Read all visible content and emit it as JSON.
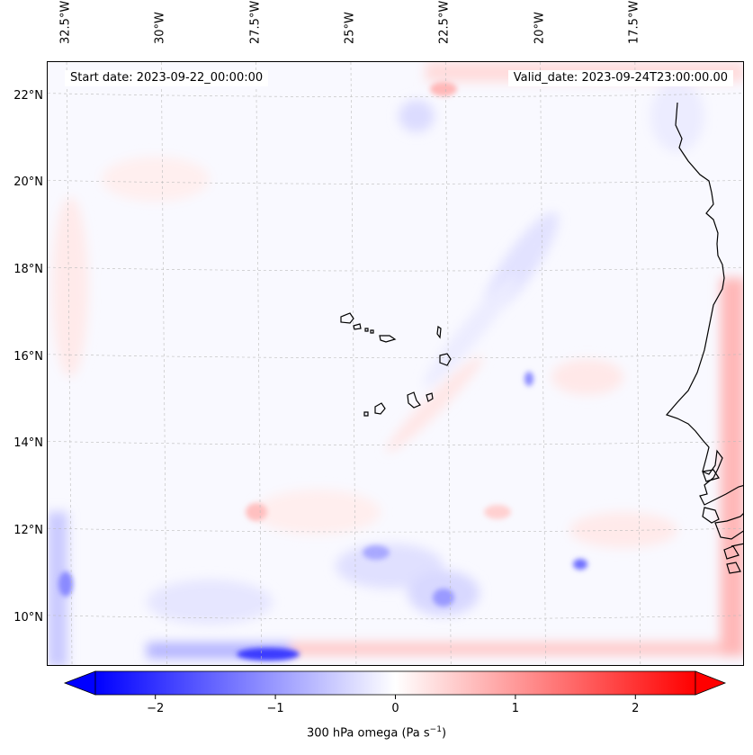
{
  "map": {
    "start_date_text": "Start date: 2023-09-22_00:00:00",
    "valid_date_text": "Valid_date: 2023-09-24T23:00:00.00",
    "extent": {
      "lon_min": -33.0,
      "lon_max": -14.6,
      "lat_min": 8.9,
      "lat_max": 22.8
    },
    "longitude_labels": [
      {
        "lon": -32.5,
        "text": "32.5°W"
      },
      {
        "lon": -30.0,
        "text": "30°W"
      },
      {
        "lon": -27.5,
        "text": "27.5°W"
      },
      {
        "lon": -25.0,
        "text": "25°W"
      },
      {
        "lon": -22.5,
        "text": "22.5°W"
      },
      {
        "lon": -20.0,
        "text": "20°W"
      },
      {
        "lon": -17.5,
        "text": "17.5°W"
      }
    ],
    "latitude_labels": [
      {
        "lat": 22,
        "text": "22°N"
      },
      {
        "lat": 20,
        "text": "20°N"
      },
      {
        "lat": 18,
        "text": "18°N"
      },
      {
        "lat": 16,
        "text": "16°N"
      },
      {
        "lat": 14,
        "text": "14°N"
      },
      {
        "lat": 12,
        "text": "12°N"
      },
      {
        "lat": 10,
        "text": "10°N"
      }
    ],
    "gridlines": true,
    "field": "300 hPa omega",
    "colormap": "bwr",
    "colors": {
      "negative": "#0000ff",
      "zero": "#ffffff",
      "positive": "#ff0000",
      "coastline": "#000000"
    }
  },
  "colorbar": {
    "label": "300 hPa omega (Pa s",
    "label_sup": "−1",
    "label_tail": ")",
    "vmin": -2.5,
    "vmax": 2.5,
    "extend": "both",
    "ticks": [
      {
        "value": -2,
        "text": "−2"
      },
      {
        "value": -1,
        "text": "−1"
      },
      {
        "value": 0,
        "text": "0"
      },
      {
        "value": 1,
        "text": "1"
      },
      {
        "value": 2,
        "text": "2"
      }
    ]
  }
}
